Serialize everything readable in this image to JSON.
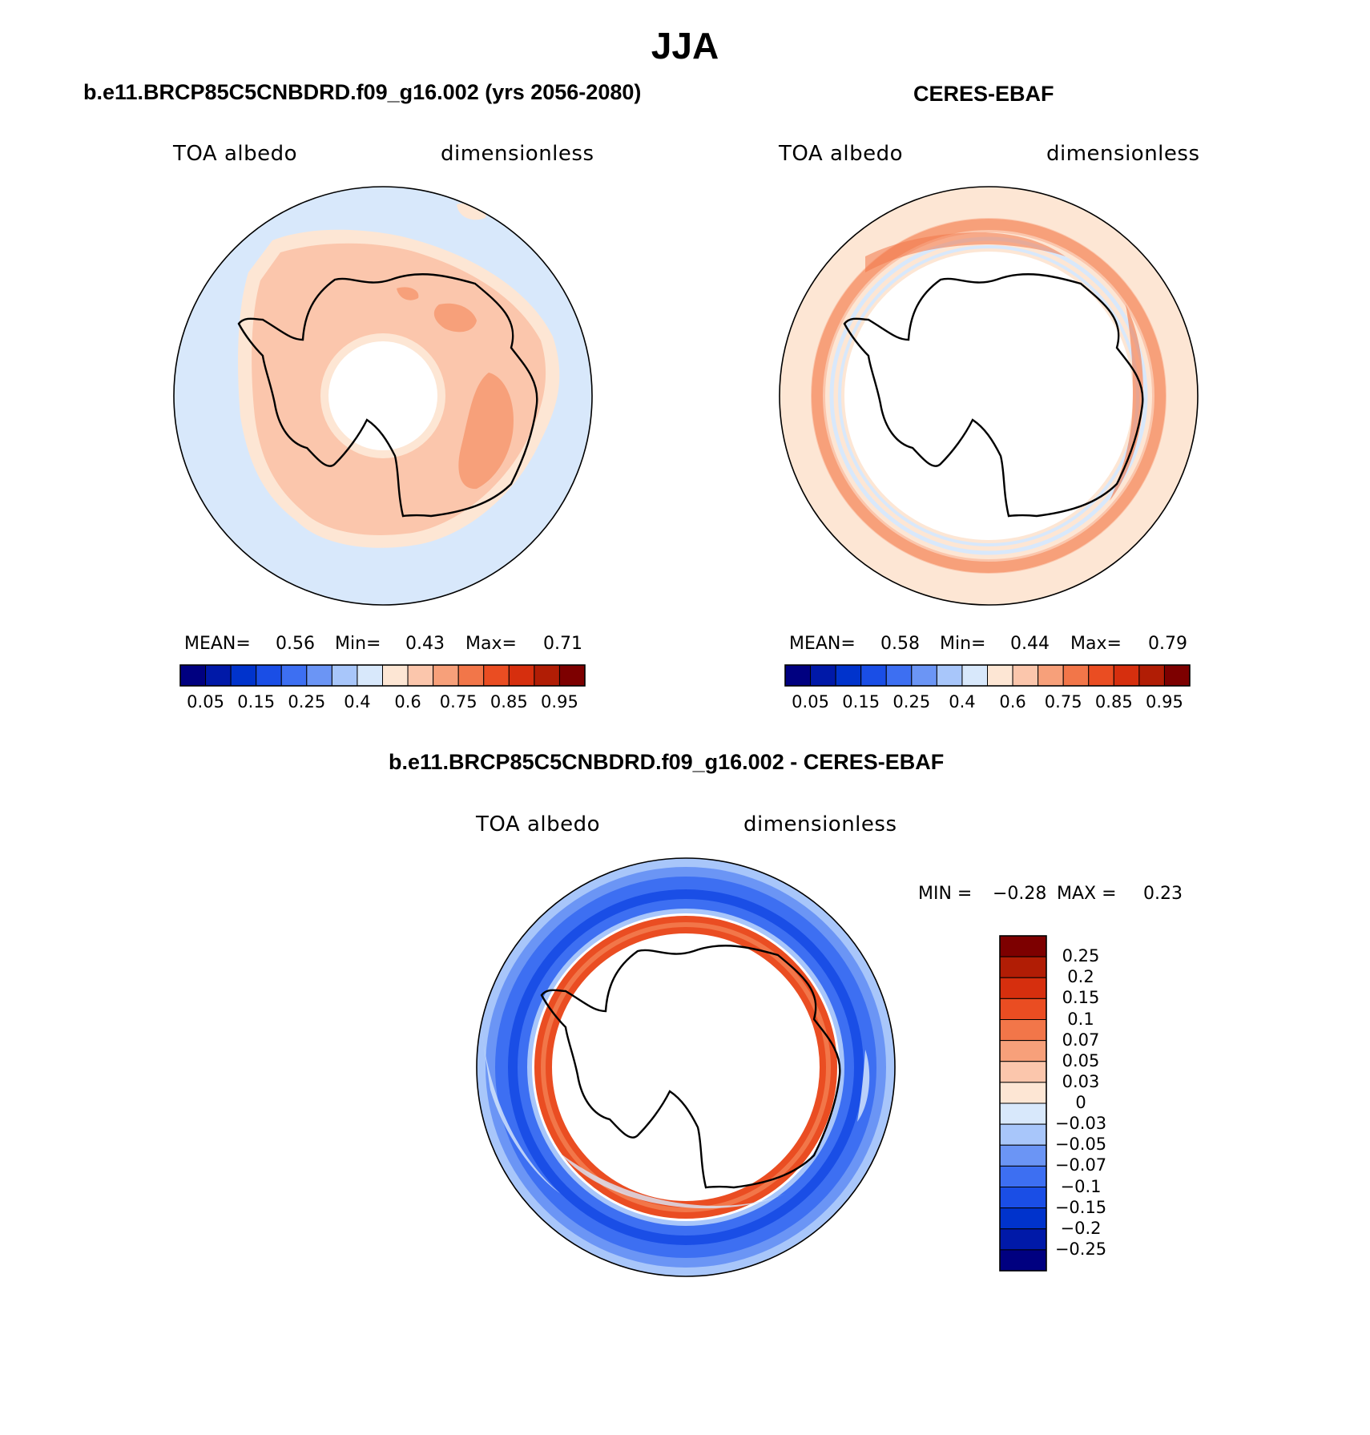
{
  "title": "JJA",
  "panels": [
    {
      "id": "model",
      "title": "b.e11.BRCP85C5CNBDRD.f09_g16.002 (yrs 2056-2080)",
      "left_label": "TOA albedo",
      "right_label": "dimensionless",
      "stats": {
        "mean_label": "MEAN=",
        "mean": "0.56",
        "min_label": "Min=",
        "min": "0.43",
        "max_label": "Max=",
        "max": "0.71"
      }
    },
    {
      "id": "obs",
      "title": "CERES-EBAF",
      "left_label": "TOA albedo",
      "right_label": "dimensionless",
      "stats": {
        "mean_label": "MEAN=",
        "mean": "0.58",
        "min_label": "Min=",
        "min": "0.44",
        "max_label": "Max=",
        "max": "0.79"
      }
    },
    {
      "id": "diff",
      "title": "b.e11.BRCP85C5CNBDRD.f09_g16.002 - CERES-EBAF",
      "left_label": "TOA albedo",
      "right_label": "dimensionless",
      "stats": {
        "min_label": "MIN =",
        "min": "−0.28",
        "max_label": "MAX =",
        "max": "0.23"
      }
    }
  ],
  "abs_colorbar": {
    "colors": [
      "#000080",
      "#0019a8",
      "#0033cc",
      "#1a4ee6",
      "#3d6ff2",
      "#6b95f5",
      "#a8c6fa",
      "#d8e8fb",
      "#fde6d4",
      "#fbc6ac",
      "#f7a07a",
      "#f27649",
      "#ea4d22",
      "#d62f0e",
      "#b11d05",
      "#7d0000"
    ],
    "tick_labels": [
      "0.05",
      "0.15",
      "0.25",
      "0.4",
      "0.6",
      "0.75",
      "0.85",
      "0.95"
    ]
  },
  "diff_colorbar": {
    "colors": [
      "#7d0000",
      "#b11d05",
      "#d62f0e",
      "#ea4d22",
      "#f27649",
      "#f7a07a",
      "#fbc6ac",
      "#fde6d4",
      "#d8e8fb",
      "#a8c6fa",
      "#6b95f5",
      "#3d6ff2",
      "#1a4ee6",
      "#0033cc",
      "#0019a8",
      "#000080"
    ],
    "tick_labels": [
      "0.25",
      "0.2",
      "0.15",
      "0.1",
      "0.07",
      "0.05",
      "0.03",
      "0",
      "−0.03",
      "−0.05",
      "−0.07",
      "−0.1",
      "−0.15",
      "−0.2",
      "−0.25"
    ]
  },
  "map_colors": {
    "ocean_low": "#d8e8fb",
    "cream": "#fde6d4",
    "salmon": "#fbc6ac",
    "peach": "#f7a07a",
    "orange": "#f27649",
    "red": "#ea4d22",
    "blue_light": "#a8c6fa",
    "blue_mid": "#6b95f5",
    "blue": "#3d6ff2",
    "blue_deep": "#1a4ee6",
    "coast": "#000000"
  }
}
